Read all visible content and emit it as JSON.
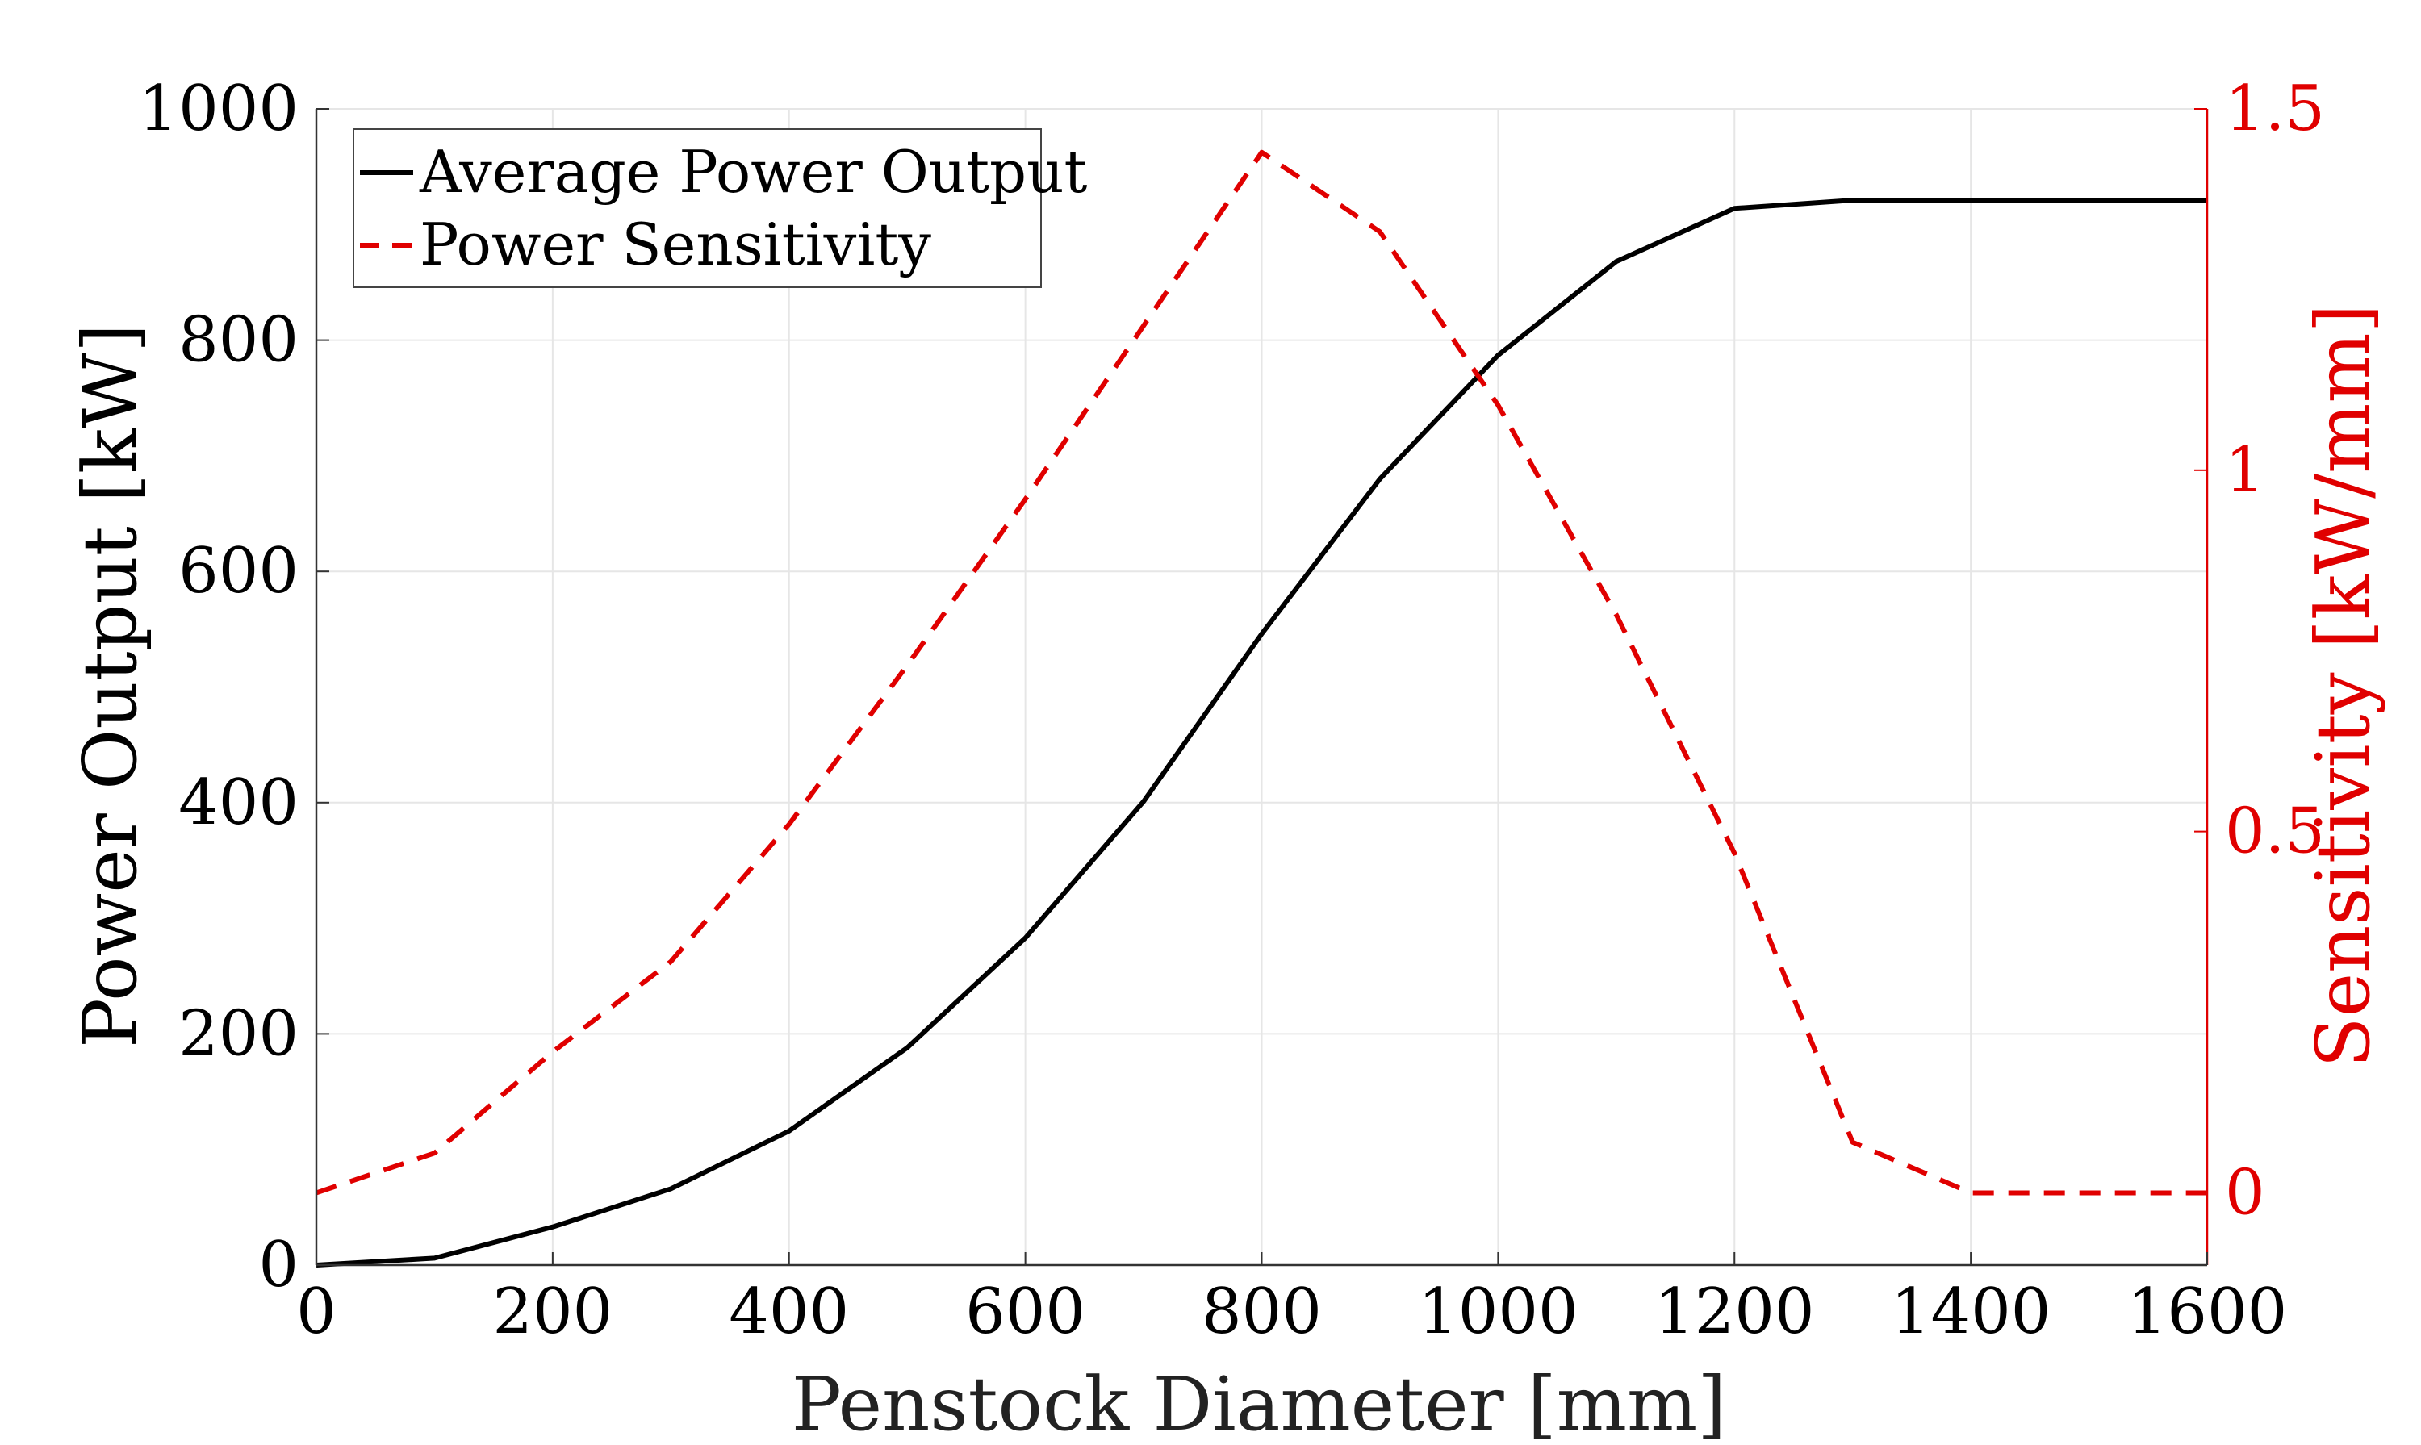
{
  "chart_data": {
    "type": "line",
    "xlabel": "Penstock Diameter [mm]",
    "ylabel_left": "Power Output [kW]",
    "ylabel_right": "Sensitivity [kW/mm]",
    "xlim": [
      0,
      1600
    ],
    "ylim_left": [
      0,
      1000
    ],
    "ylim_right": [
      -0.1,
      1.5
    ],
    "x_ticks": [
      "0",
      "200",
      "400",
      "600",
      "800",
      "1000",
      "1200",
      "1400",
      "1600"
    ],
    "y_left_ticks": [
      "0",
      "200",
      "400",
      "600",
      "800",
      "1000"
    ],
    "y_right_ticks": [
      "0",
      "0.5",
      "1",
      "1.5"
    ],
    "grid": true,
    "legend_position": "top-left",
    "x": [
      0,
      100,
      200,
      300,
      400,
      500,
      600,
      700,
      800,
      900,
      1000,
      1100,
      1200,
      1300,
      1400,
      1500,
      1600
    ],
    "series": [
      {
        "name": "Average Power Output",
        "axis": "left",
        "style": "solid",
        "color": "#000000",
        "values": [
          0,
          6,
          33,
          66,
          116,
          188,
          283,
          401,
          546,
          680,
          787,
          868,
          914,
          921,
          921,
          921,
          921
        ]
      },
      {
        "name": "Power Sensitivity",
        "axis": "right",
        "style": "dashed",
        "color": "#e00000",
        "values": [
          0.0,
          0.055,
          0.195,
          0.32,
          0.51,
          0.73,
          0.96,
          1.2,
          1.44,
          1.33,
          1.09,
          0.8,
          0.47,
          0.07,
          0.0,
          0.0,
          0.0
        ]
      }
    ]
  }
}
